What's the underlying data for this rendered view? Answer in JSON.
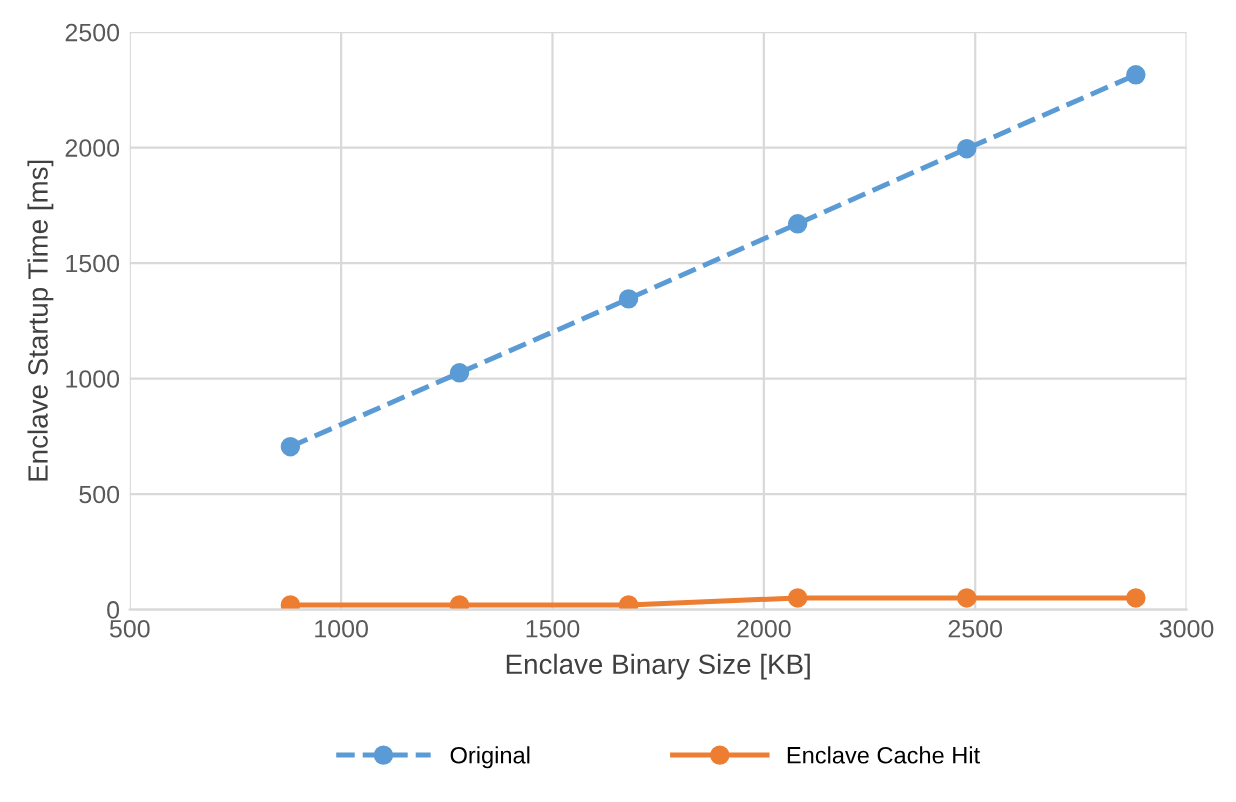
{
  "chart_data": {
    "type": "line",
    "xlabel": "Enclave Binary Size [KB]",
    "ylabel": "Enclave Startup Time [ms]",
    "x": [
      880,
      1280,
      1680,
      2080,
      2480,
      2880
    ],
    "series": [
      {
        "name": "Original",
        "color": "#5b9bd5",
        "line_style": "dashed",
        "values": [
          705,
          1025,
          1345,
          1670,
          1995,
          2315
        ]
      },
      {
        "name": "Enclave Cache Hit",
        "color": "#ed7d31",
        "line_style": "solid",
        "values": [
          20,
          20,
          20,
          50,
          50,
          50
        ]
      }
    ],
    "xlim": [
      500,
      3000
    ],
    "xticks": [
      500,
      1000,
      1500,
      2000,
      2500,
      3000
    ],
    "ylim": [
      0,
      2500
    ],
    "yticks": [
      0,
      500,
      1000,
      1500,
      2000,
      2500
    ],
    "grid": true,
    "legend": "bottom",
    "marker": "circle"
  }
}
